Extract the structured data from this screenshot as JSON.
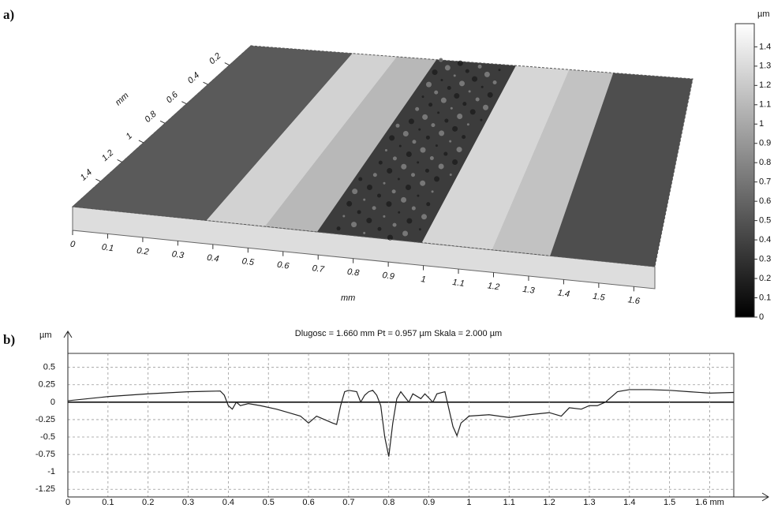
{
  "panel_a": {
    "label": "a)",
    "x_axis_label": "mm",
    "y_axis_label": "mm",
    "xlim": [
      0,
      1.66
    ],
    "xticks": [
      0,
      0.1,
      0.2,
      0.3,
      0.4,
      0.5,
      0.6,
      0.7,
      0.8,
      0.9,
      1,
      1.1,
      1.2,
      1.3,
      1.4,
      1.5,
      1.6
    ],
    "ylim": [
      0,
      1.66
    ],
    "yticks": [
      0.2,
      0.4,
      0.6,
      0.8,
      1,
      1.2,
      1.4
    ],
    "colorbar": {
      "unit": "µm",
      "lim": [
        0,
        1.52
      ],
      "ticks": [
        0,
        0.1,
        0.2,
        0.3,
        0.4,
        0.5,
        0.6,
        0.7,
        0.8,
        0.9,
        1,
        1.1,
        1.2,
        1.3,
        1.4
      ]
    }
  },
  "chart_data": {
    "type": "line",
    "label": "b)",
    "title": "Dlugosc = 1.660 mm  Pt = 0.957 µm  Skala = 2.000 µm",
    "y_label": "µm",
    "color": "#222",
    "grid": true,
    "x": [
      0,
      0.1,
      0.2,
      0.3,
      0.38,
      0.39,
      0.4,
      0.41,
      0.42,
      0.43,
      0.45,
      0.48,
      0.52,
      0.55,
      0.58,
      0.6,
      0.62,
      0.64,
      0.66,
      0.67,
      0.68,
      0.69,
      0.7,
      0.72,
      0.73,
      0.74,
      0.75,
      0.76,
      0.77,
      0.78,
      0.79,
      0.8,
      0.81,
      0.82,
      0.83,
      0.85,
      0.86,
      0.88,
      0.89,
      0.91,
      0.92,
      0.94,
      0.95,
      0.96,
      0.97,
      0.98,
      1.0,
      1.05,
      1.1,
      1.15,
      1.2,
      1.23,
      1.25,
      1.28,
      1.3,
      1.32,
      1.34,
      1.37,
      1.4,
      1.45,
      1.5,
      1.55,
      1.6,
      1.66
    ],
    "values": [
      0.02,
      0.08,
      0.12,
      0.15,
      0.16,
      0.1,
      -0.05,
      -0.1,
      0.0,
      -0.05,
      -0.02,
      -0.05,
      -0.1,
      -0.15,
      -0.2,
      -0.3,
      -0.2,
      -0.25,
      -0.3,
      -0.32,
      -0.05,
      0.15,
      0.17,
      0.15,
      0.0,
      0.1,
      0.15,
      0.17,
      0.1,
      -0.05,
      -0.5,
      -0.78,
      -0.3,
      0.05,
      0.15,
      0.0,
      0.12,
      0.05,
      0.12,
      0.0,
      0.12,
      0.15,
      -0.1,
      -0.35,
      -0.48,
      -0.3,
      -0.2,
      -0.18,
      -0.22,
      -0.18,
      -0.15,
      -0.2,
      -0.08,
      -0.1,
      -0.05,
      -0.05,
      0.0,
      0.15,
      0.18,
      0.18,
      0.17,
      0.15,
      0.13,
      0.14
    ],
    "xlim": [
      0,
      1.66
    ],
    "ylim": [
      -1.36,
      0.7
    ],
    "xticks": [
      0,
      0.1,
      0.2,
      0.3,
      0.4,
      0.5,
      0.6,
      0.7,
      0.8,
      0.9,
      1,
      1.1,
      1.2,
      1.3,
      1.4,
      1.5,
      {
        "value": 1.6,
        "label": "1.6 mm"
      }
    ],
    "yticks": [
      0.5,
      0.25,
      0,
      -0.25,
      -0.5,
      -0.75,
      -1,
      -1.25
    ]
  }
}
